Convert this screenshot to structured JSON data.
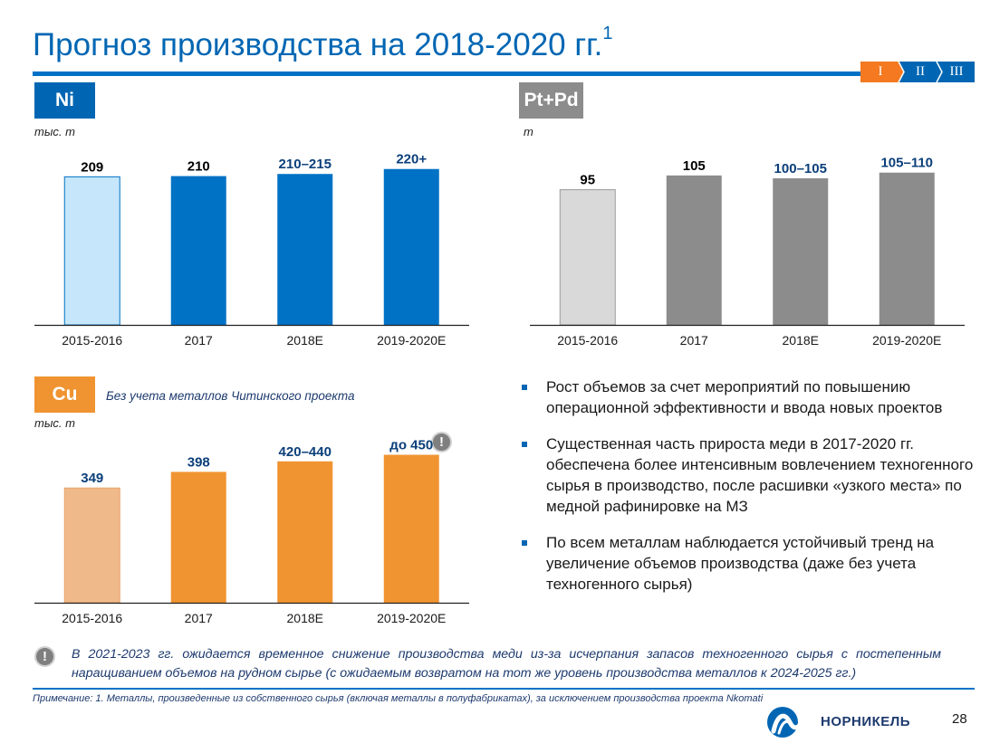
{
  "header": {
    "title": "Прогноз производства на 2018-2020 гг.",
    "title_sup": "1",
    "nav": [
      {
        "label": "I",
        "active": true
      },
      {
        "label": "II",
        "active": false
      },
      {
        "label": "III",
        "active": false
      }
    ]
  },
  "colors": {
    "brand_blue": "#0066b3",
    "nav_orange": "#f47920",
    "ni_dark": "#0072c6",
    "ni_light": "#c5e6fb",
    "pgm_dark": "#8c8c8c",
    "pgm_light": "#d9d9d9",
    "cu_dark": "#f09431",
    "cu_light": "#f0b98a"
  },
  "panels": {
    "ni": {
      "badge": "Ni",
      "unit": "тыс. т"
    },
    "pgm": {
      "badge": "Pt+Pd",
      "unit": "т"
    },
    "cu": {
      "badge": "Cu",
      "unit": "тыс. т",
      "note": "Без учета металлов Читинского проекта",
      "warning_icon": "exclamation-icon"
    }
  },
  "chart_data": [
    {
      "type": "bar",
      "title": "Ni",
      "ylabel": "тыс. т",
      "categories": [
        "2015-2016",
        "2017",
        "2018E",
        "2019-2020E"
      ],
      "values": [
        209,
        210,
        213,
        220
      ],
      "labels": [
        "209",
        "210",
        "210–215",
        "220+"
      ],
      "ylim": [
        0,
        235
      ],
      "highlight_first_light": true
    },
    {
      "type": "bar",
      "title": "Pt+Pd",
      "ylabel": "т",
      "categories": [
        "2015-2016",
        "2017",
        "2018E",
        "2019-2020E"
      ],
      "values": [
        95,
        105,
        103,
        107
      ],
      "labels": [
        "95",
        "105",
        "100–105",
        "105–110"
      ],
      "ylim": [
        0,
        117
      ],
      "highlight_first_light": true
    },
    {
      "type": "bar",
      "title": "Cu",
      "ylabel": "тыс. т",
      "categories": [
        "2015-2016",
        "2017",
        "2018E",
        "2019-2020E"
      ],
      "values": [
        349,
        398,
        430,
        450
      ],
      "labels": [
        "349",
        "398",
        "420–440",
        "до 450"
      ],
      "ylim": [
        0,
        512
      ],
      "highlight_first_light": true
    }
  ],
  "bullets": [
    "Рост объемов за счет мероприятий по повышению операционной эффективности и ввода новых проектов",
    "Существенная часть прироста меди в 2017-2020 гг. обеспечена более интенсивным вовлечением техногенного сырья в производство, после расшивки «узкого места» по медной рафинировке на МЗ",
    "По всем металлам наблюдается устойчивый тренд на увеличение объемов производства (даже без учета техногенного сырья)"
  ],
  "footer": {
    "warning_icon": "exclamation-icon",
    "warning_text": "В 2021-2023 гг. ожидается временное снижение производства меди из-за исчерпания запасов техногенного сырья с постепенным наращиванием объемов на рудном сырье (с ожидаемым возвратом на тот же уровень производства металлов к 2024-2025 гг.)",
    "remark": "Примечание: 1. Металлы, произведенные из собственного сырья (включая металлы в полуфабрикатах), за исключением производства проекта Nkomati",
    "logo_text": "НОРНИКЕЛЬ",
    "logo_icon": "nornickel-logo-icon",
    "page_number": "28"
  }
}
